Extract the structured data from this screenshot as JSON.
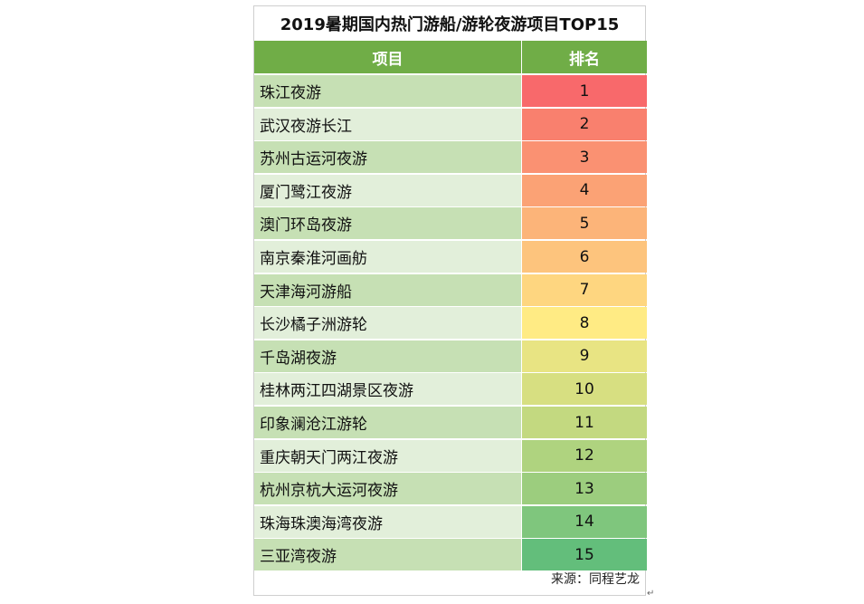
{
  "title": "2019暑期国内热门游船/游轮夜游项目TOP15",
  "columns": {
    "item": "项目",
    "rank": "排名"
  },
  "source": "来源：同程艺龙",
  "colors": {
    "header": "#70ad47",
    "row_a": "#c6e0b4",
    "row_b": "#e2efda"
  },
  "rows": [
    {
      "item": "珠江夜游",
      "rank": "1",
      "color": "#f8696b"
    },
    {
      "item": "武汉夜游长江",
      "rank": "2",
      "color": "#f9806e"
    },
    {
      "item": "苏州古运河夜游",
      "rank": "3",
      "color": "#fa9172"
    },
    {
      "item": "厦门鹭江夜游",
      "rank": "4",
      "color": "#fba275"
    },
    {
      "item": "澳门环岛夜游",
      "rank": "5",
      "color": "#fcb479"
    },
    {
      "item": "南京秦淮河画舫",
      "rank": "6",
      "color": "#fdc47d"
    },
    {
      "item": "天津海河游船",
      "rank": "7",
      "color": "#fed680"
    },
    {
      "item": "长沙橘子洲游轮",
      "rank": "8",
      "color": "#ffeb84"
    },
    {
      "item": "千岛湖夜游",
      "rank": "9",
      "color": "#e8e483"
    },
    {
      "item": "桂林两江四湖景区夜游",
      "rank": "10",
      "color": "#d7df81"
    },
    {
      "item": "印象澜沧江游轮",
      "rank": "11",
      "color": "#c3d980"
    },
    {
      "item": "重庆朝天门两江夜游",
      "rank": "12",
      "color": "#afd37f"
    },
    {
      "item": "杭州京杭大运河夜游",
      "rank": "13",
      "color": "#9ccd7e"
    },
    {
      "item": "珠海珠澳海湾夜游",
      "rank": "14",
      "color": "#7fc67d"
    },
    {
      "item": "三亚湾夜游",
      "rank": "15",
      "color": "#63be7b"
    }
  ]
}
